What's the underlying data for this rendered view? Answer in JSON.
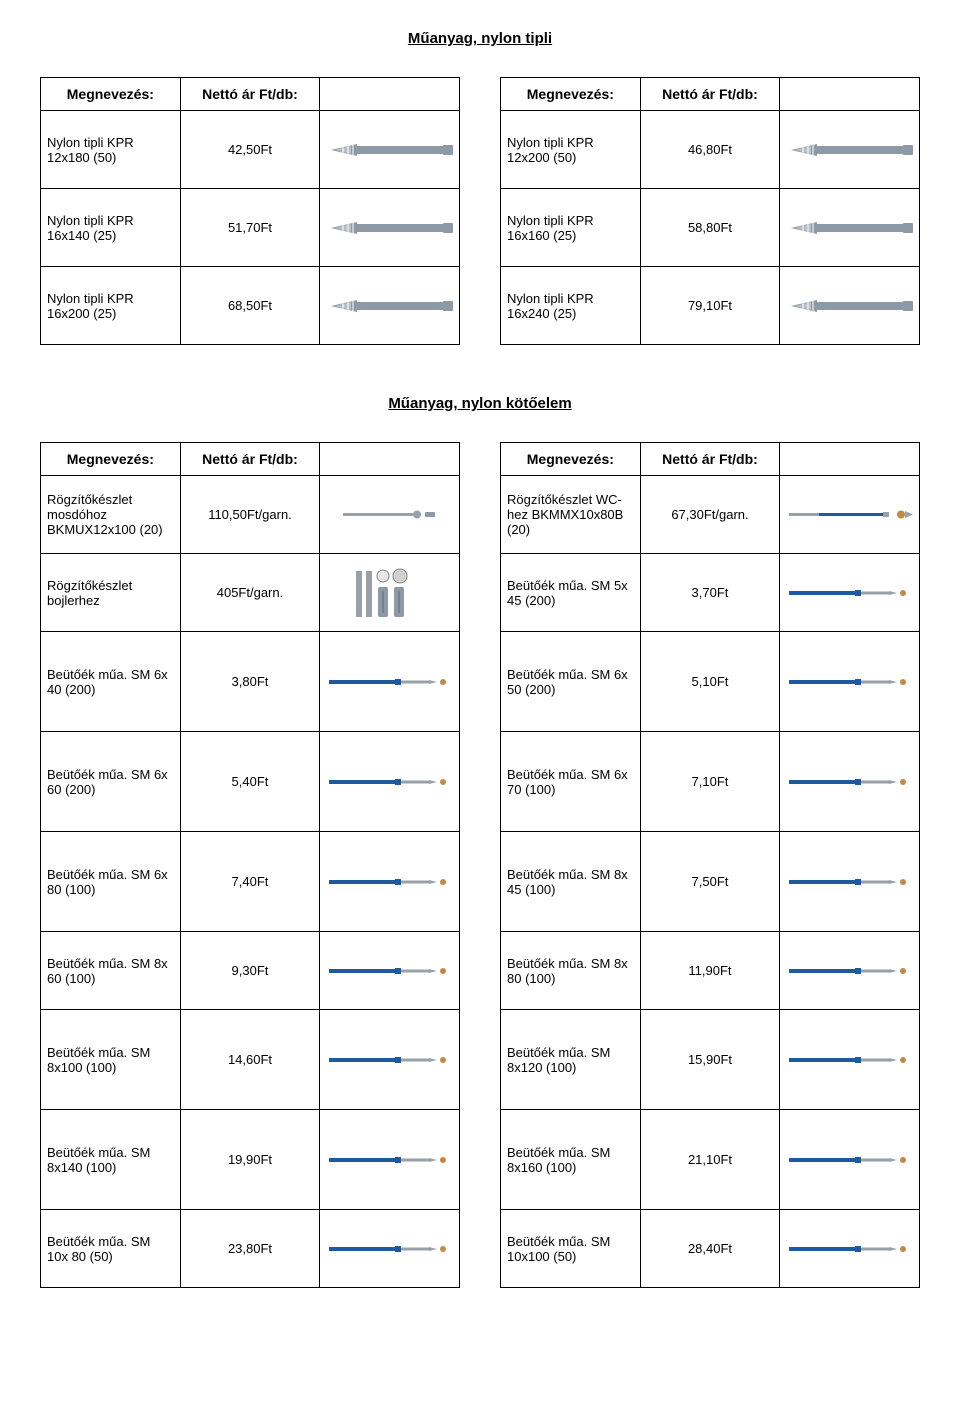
{
  "section_titles": {
    "tipli": "Műanyag, nylon tipli",
    "kotoelem": "Műanyag, nylon kötőelem"
  },
  "headers": {
    "name": "Megnevezés:",
    "price": "Nettó ár Ft/db:"
  },
  "colors": {
    "plug_body": "#8d99a6",
    "plug_shadow": "#b8c0c8",
    "fastener_blue": "#1e5a9c",
    "fastener_steel": "#9aa0a8",
    "fastener_tip": "#c08a4a"
  },
  "tables": {
    "tipli_left": [
      {
        "name": "Nylon tipli KPR 12x180 (50)",
        "price": "42,50Ft",
        "img": "plug"
      },
      {
        "name": "Nylon tipli KPR 16x140 (25)",
        "price": "51,70Ft",
        "img": "plug"
      },
      {
        "name": "Nylon tipli KPR 16x200 (25)",
        "price": "68,50Ft",
        "img": "plug"
      }
    ],
    "tipli_right": [
      {
        "name": "Nylon tipli KPR 12x200 (50)",
        "price": "46,80Ft",
        "img": "plug"
      },
      {
        "name": "Nylon tipli KPR 16x160 (25)",
        "price": "58,80Ft",
        "img": "plug"
      },
      {
        "name": "Nylon tipli KPR 16x240 (25)",
        "price": "79,10Ft",
        "img": "plug"
      }
    ],
    "koto_left": [
      {
        "name": "Rögzítőkészlet mosdóhoz BKMUX12x100 (20)",
        "price": "110,50Ft/garn.",
        "img": "bolt-short"
      },
      {
        "name": "Rögzítőkészlet bojlerhez",
        "price": "405Ft/garn.",
        "img": "kit"
      },
      {
        "name": "Beütőék műa. SM 6x 40 (200)",
        "price": "3,80Ft",
        "img": "fastener",
        "tall": true
      },
      {
        "name": "Beütőék műa. SM 6x 60 (200)",
        "price": "5,40Ft",
        "img": "fastener",
        "tall": true
      },
      {
        "name": "Beütőék műa. SM 6x 80 (100)",
        "price": "7,40Ft",
        "img": "fastener",
        "tall": true
      },
      {
        "name": "Beütőék műa. SM 8x 60 (100)",
        "price": "9,30Ft",
        "img": "fastener"
      },
      {
        "name": "Beütőék műa. SM 8x100 (100)",
        "price": "14,60Ft",
        "img": "fastener",
        "tall": true
      },
      {
        "name": "Beütőék műa. SM 8x140 (100)",
        "price": "19,90Ft",
        "img": "fastener",
        "tall": true
      },
      {
        "name": "Beütőék műa. SM 10x 80 (50)",
        "price": "23,80Ft",
        "img": "fastener"
      }
    ],
    "koto_right": [
      {
        "name": "Rögzítőkészlet WC-hez BKMMX10x80B (20)",
        "price": "67,30Ft/garn.",
        "img": "bolt-long"
      },
      {
        "name": "Beütőék műa. SM 5x 45 (200)",
        "price": "3,70Ft",
        "img": "fastener"
      },
      {
        "name": "Beütőék műa. SM 6x 50 (200)",
        "price": "5,10Ft",
        "img": "fastener",
        "tall": true
      },
      {
        "name": "Beütőék műa. SM 6x 70 (100)",
        "price": "7,10Ft",
        "img": "fastener",
        "tall": true
      },
      {
        "name": "Beütőék műa. SM 8x 45 (100)",
        "price": "7,50Ft",
        "img": "fastener",
        "tall": true
      },
      {
        "name": "Beütőék műa. SM 8x 80 (100)",
        "price": "11,90Ft",
        "img": "fastener"
      },
      {
        "name": "Beütőék műa. SM 8x120 (100)",
        "price": "15,90Ft",
        "img": "fastener",
        "tall": true
      },
      {
        "name": "Beütőék műa. SM 8x160 (100)",
        "price": "21,10Ft",
        "img": "fastener",
        "tall": true
      },
      {
        "name": "Beütőék műa. SM 10x100 (50)",
        "price": "28,40Ft",
        "img": "fastener"
      }
    ]
  }
}
